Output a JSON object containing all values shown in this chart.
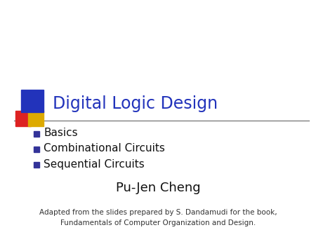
{
  "title": "Digital Logic Design",
  "title_color": "#2233BB",
  "bullet_items": [
    "Basics",
    "Combinational Circuits",
    "Sequential Circuits"
  ],
  "bullet_color": "#111111",
  "bullet_marker_color": "#333399",
  "author": "Pu-Jen Cheng",
  "author_color": "#111111",
  "footnote_line1": "Adapted from the slides prepared by S. Dandamudi for the book,",
  "footnote_line2": "Fundamentals of Computer Organization and Design.",
  "footnote_color": "#333333",
  "bg_color": "#ffffff",
  "line_color": "#666666",
  "square_blue": "#2233BB",
  "square_red": "#DD2222",
  "square_yellow": "#DDAA00",
  "title_fontsize": 17,
  "bullet_fontsize": 11,
  "author_fontsize": 13,
  "footnote_fontsize": 7.5
}
